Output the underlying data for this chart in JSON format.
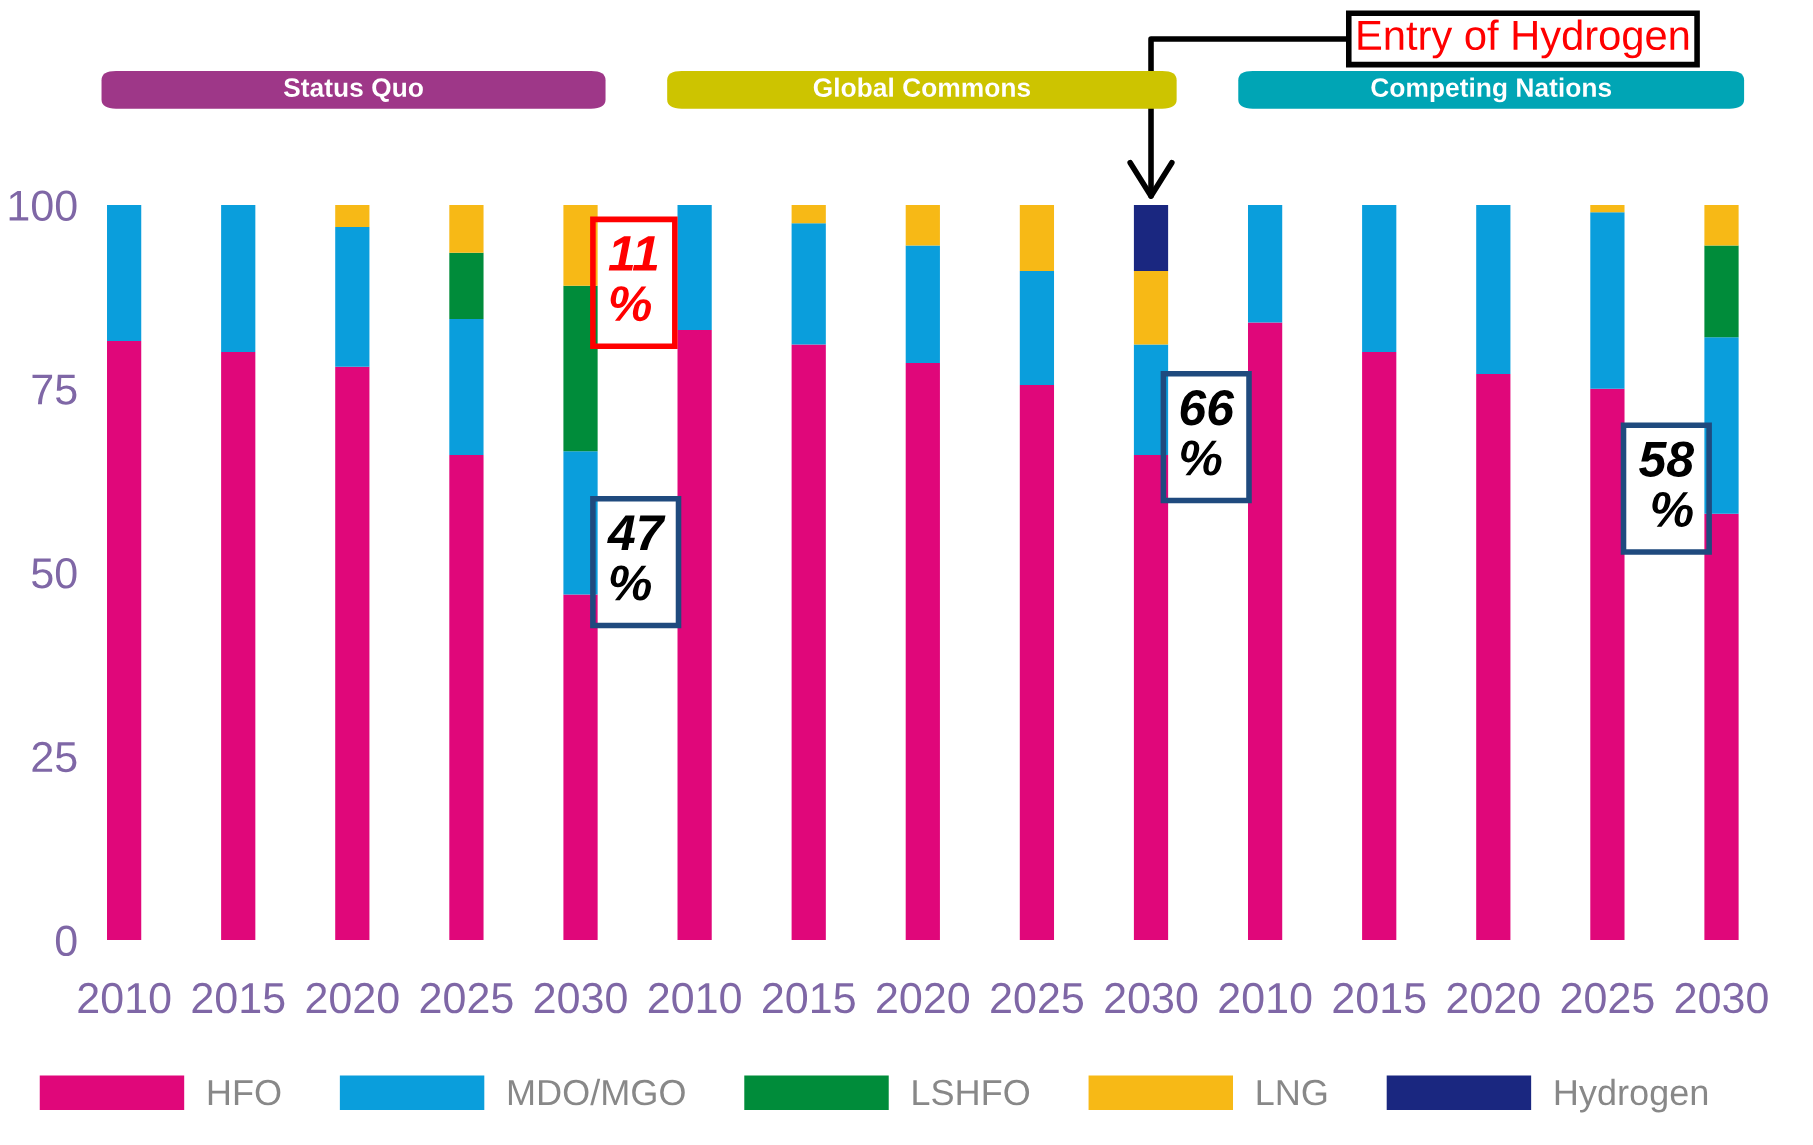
{
  "chart_data": {
    "type": "bar",
    "stacked": true,
    "categories": [
      "2010",
      "2015",
      "2020",
      "2025",
      "2030",
      "2010",
      "2015",
      "2020",
      "2025",
      "2030",
      "2010",
      "2015",
      "2020",
      "2025",
      "2030"
    ],
    "series": [
      {
        "name": "HFO",
        "color": "#e0077a",
        "values": [
          81.5,
          80,
          78,
          66,
          47,
          83,
          81,
          78.5,
          75.5,
          66,
          84,
          80,
          77,
          75,
          58
        ]
      },
      {
        "name": "MDO/MGO",
        "color": "#0a9edc",
        "values": [
          18.5,
          20,
          19,
          18.5,
          19.5,
          17,
          16.5,
          16,
          15.5,
          15,
          16,
          20,
          23,
          24,
          24
        ]
      },
      {
        "name": "LSHFO",
        "color": "#008c3a",
        "values": [
          0,
          0,
          0,
          9,
          22.5,
          0,
          0,
          0,
          0,
          0,
          0,
          0,
          0,
          0,
          12.5
        ]
      },
      {
        "name": "LNG",
        "color": "#f7b916",
        "values": [
          0,
          0,
          3,
          6.5,
          11,
          0,
          2.5,
          5.5,
          9,
          10,
          0,
          0,
          0,
          1,
          5.5
        ]
      },
      {
        "name": "Hydrogen",
        "color": "#1a2780",
        "values": [
          0,
          0,
          0,
          0,
          0,
          0,
          0,
          0,
          0,
          9,
          0,
          0,
          0,
          0,
          0
        ]
      }
    ],
    "ylim": [
      0,
      100
    ],
    "yticks": [
      0,
      25,
      50,
      75,
      100
    ],
    "grid": false,
    "legend": "bottom",
    "annotations": [
      "Status Quo",
      "Global Commons",
      "Competing Nations",
      "Entry of Hydrogen",
      "11\n%",
      "47\n%",
      "66\n%",
      "58\n%"
    ]
  }
}
